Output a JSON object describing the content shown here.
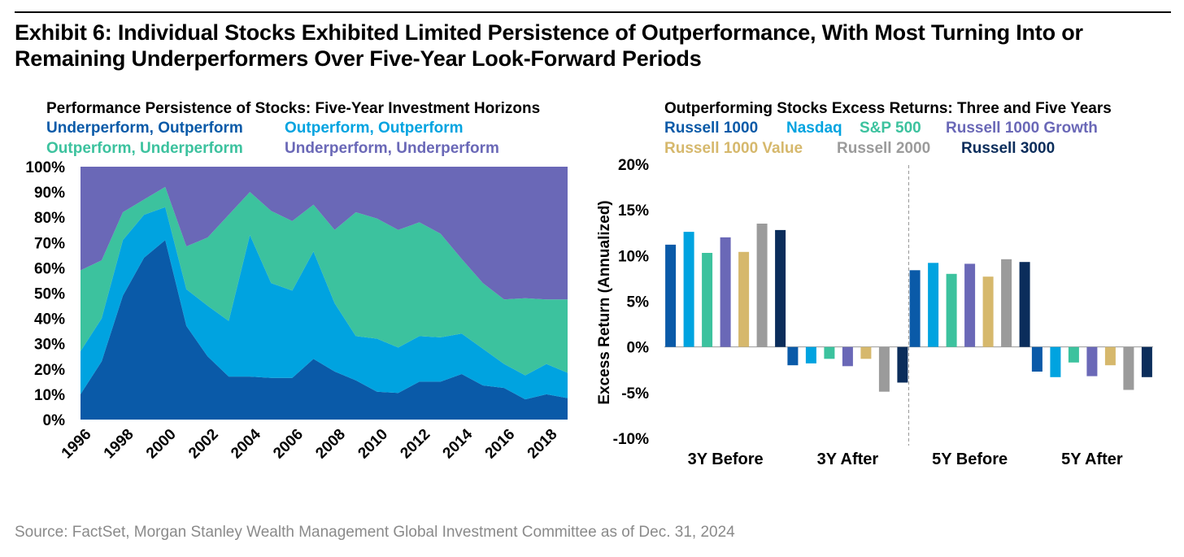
{
  "exhibit_title_line1": "Exhibit 6: Individual Stocks Exhibited Limited Persistence of Outperformance, With Most Turning Into or",
  "exhibit_title_line2": "Remaining Underperformers Over Five-Year Look-Forward Periods",
  "source": "Source: FactSet, Morgan Stanley Wealth Management Global Investment Committee as of Dec. 31, 2024",
  "colors": {
    "dark_blue": "#0a5aa8",
    "light_blue": "#00a3e0",
    "teal": "#3cc29e",
    "purple": "#6a68b7",
    "gold": "#d6b86c",
    "gray": "#9b9b9b",
    "navy": "#0b2d5b"
  },
  "chart_data": [
    {
      "type": "area",
      "title": "Performance Persistence of Stocks: Five-Year Investment Horizons",
      "stacked": true,
      "x": [
        1996,
        1997,
        1998,
        1999,
        2000,
        2001,
        2002,
        2003,
        2004,
        2005,
        2006,
        2007,
        2008,
        2009,
        2010,
        2011,
        2012,
        2013,
        2014,
        2015,
        2016,
        2017,
        2018,
        2019
      ],
      "x_ticks": [
        "1996",
        "1998",
        "2000",
        "2002",
        "2004",
        "2006",
        "2008",
        "2010",
        "2012",
        "2014",
        "2016",
        "2018"
      ],
      "y_ticks": [
        "0%",
        "10%",
        "20%",
        "30%",
        "40%",
        "50%",
        "60%",
        "70%",
        "80%",
        "90%",
        "100%"
      ],
      "ylim": [
        0,
        100
      ],
      "legend": [
        "Underperform, Outperform",
        "Outperform, Outperform",
        "Outperform, Underperform",
        "Underperform, Underperform"
      ],
      "series": [
        {
          "name": "Underperform, Outperform",
          "color": "#0a5aa8",
          "values": [
            10,
            23,
            49,
            64,
            71,
            37,
            25,
            17,
            17,
            16.5,
            16.5,
            24,
            19,
            15.5,
            11,
            10.5,
            15,
            15,
            18,
            13.5,
            12.5,
            8,
            10,
            8.5
          ]
        },
        {
          "name": "Outperform, Outperform",
          "color": "#00a3e0",
          "values": [
            17,
            17,
            22,
            17,
            13,
            14.5,
            20,
            22,
            56,
            37.5,
            34.5,
            42.5,
            27,
            17.5,
            21,
            18,
            18,
            17.5,
            16,
            14.5,
            9.5,
            9.5,
            12,
            10
          ]
        },
        {
          "name": "Outperform, Underperform",
          "color": "#3cc29e",
          "values": [
            32,
            23,
            11,
            6,
            8,
            17,
            27,
            42,
            17,
            28.5,
            27.5,
            18.5,
            29,
            49,
            47.5,
            46.5,
            45,
            41,
            29.5,
            26,
            25.5,
            30.5,
            25.5,
            29
          ]
        },
        {
          "name": "Underperform, Underperform",
          "color": "#6a68b7",
          "values": [
            41,
            37,
            18,
            13,
            8,
            31.5,
            28,
            19,
            10,
            17.5,
            21.5,
            15,
            25,
            18,
            20.5,
            25,
            22,
            26.5,
            36.5,
            46,
            52.5,
            52,
            52.5,
            52.5
          ]
        }
      ]
    },
    {
      "type": "bar",
      "title": "Outperforming Stocks Excess Returns: Three and Five Years",
      "ylabel": "Excess Return (Annualized)",
      "ylim": [
        -10,
        20
      ],
      "y_ticks": [
        "20%",
        "15%",
        "10%",
        "5%",
        "0%",
        "-5%",
        "-10%"
      ],
      "categories": [
        "3Y Before",
        "3Y After",
        "5Y Before",
        "5Y After"
      ],
      "legend_rows": [
        [
          "Russell 1000",
          "Nasdaq",
          "S&P 500",
          "Russell 1000 Growth"
        ],
        [
          "Russell 1000 Value",
          "Russell 2000",
          "Russell 3000"
        ]
      ],
      "series": [
        {
          "name": "Russell 1000",
          "color": "#0a5aa8",
          "values": [
            11.2,
            -2.0,
            8.4,
            -2.7
          ]
        },
        {
          "name": "Nasdaq",
          "color": "#00a3e0",
          "values": [
            12.6,
            -1.8,
            9.2,
            -3.3
          ]
        },
        {
          "name": "S&P 500",
          "color": "#3cc29e",
          "values": [
            10.3,
            -1.3,
            8.0,
            -1.7
          ]
        },
        {
          "name": "Russell 1000 Growth",
          "color": "#6a68b7",
          "values": [
            12.0,
            -2.1,
            9.1,
            -3.2
          ]
        },
        {
          "name": "Russell 1000 Value",
          "color": "#d6b86c",
          "values": [
            10.4,
            -1.3,
            7.7,
            -2.0
          ]
        },
        {
          "name": "Russell 2000",
          "color": "#9b9b9b",
          "values": [
            13.5,
            -4.9,
            9.6,
            -4.7
          ]
        },
        {
          "name": "Russell 3000",
          "color": "#0b2d5b",
          "values": [
            12.8,
            -3.9,
            9.3,
            -3.3
          ]
        }
      ]
    }
  ]
}
